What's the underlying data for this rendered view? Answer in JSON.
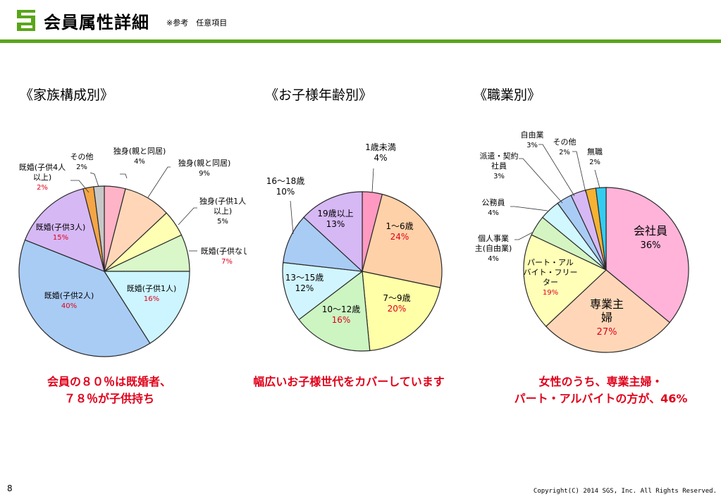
{
  "header": {
    "title": "会員属性詳細",
    "subtitle": "※参考　任意項目",
    "colors": {
      "accent": "#5aa51a"
    }
  },
  "footer": {
    "page_number": "8",
    "copyright": "Copyright(C) 2014 SGS, Inc. All Rights Reserved."
  },
  "captions": {
    "family": [
      "会員の８０％は既婚者、",
      "７８％が子供持ち"
    ],
    "children": [
      "幅広いお子様世代をカバーしています"
    ],
    "occupation": [
      "女性のうち、専業主婦・",
      "パート・アルバイトの方が、46%"
    ]
  },
  "chart_data": [
    {
      "type": "pie",
      "title": "《家族構成別》",
      "slices": [
        {
          "label": [
            "独身(親と同居)"
          ],
          "value": 4,
          "value_text": "4%",
          "color": "#ffb3c6"
        },
        {
          "label": [
            "独身(親と同居)"
          ],
          "value": 9,
          "value_text": "9%",
          "color": "#ffd7b8"
        },
        {
          "label": [
            "独身(子供1人",
            "以上)"
          ],
          "value": 5,
          "value_text": "5%",
          "color": "#ffffb3"
        },
        {
          "label": [
            "既婚(子供なし)"
          ],
          "value": 7,
          "value_text": "7%",
          "value_color": "#e0001a",
          "color": "#d9f7c8"
        },
        {
          "label": [
            "既婚(子供1人)"
          ],
          "value": 16,
          "value_text": "16%",
          "value_color": "#e0001a",
          "color": "#ccf5ff"
        },
        {
          "label": [
            "既婚(子供2人)"
          ],
          "value": 40,
          "value_text": "40%",
          "value_color": "#e0001a",
          "color": "#a9ccf5"
        },
        {
          "label": [
            "既婚(子供3人)"
          ],
          "value": 15,
          "value_text": "15%",
          "value_color": "#e0001a",
          "color": "#d6b8f5"
        },
        {
          "label": [
            "既婚(子供4人",
            "以上)"
          ],
          "value": 2,
          "value_text": "2%",
          "value_color": "#e0001a",
          "color": "#f5a545"
        },
        {
          "label": [
            "その他"
          ],
          "value": 2,
          "value_text": "2%",
          "color": "#c8c8c8"
        }
      ]
    },
    {
      "type": "pie",
      "title": "《お子様年齢別》",
      "slices": [
        {
          "label": [
            "1歳未満"
          ],
          "value": 4,
          "value_text": "4%",
          "color": "#ff99c2"
        },
        {
          "label": [
            "1～6歳"
          ],
          "value": 24,
          "value_text": "24%",
          "value_color": "#e0001a",
          "color": "#ffd1a8"
        },
        {
          "label": [
            "7～9歳"
          ],
          "value": 20,
          "value_text": "20%",
          "value_color": "#e0001a",
          "color": "#ffffa8"
        },
        {
          "label": [
            "10～12歳"
          ],
          "value": 16,
          "value_text": "16%",
          "value_color": "#e0001a",
          "color": "#ccf5c2"
        },
        {
          "label": [
            "13～15歳"
          ],
          "value": 12,
          "value_text": "12%",
          "color": "#d1f5ff"
        },
        {
          "label": [
            "16～18歳"
          ],
          "value": 10,
          "value_text": "10%",
          "color": "#a9ccf5"
        },
        {
          "label": [
            "19歳以上"
          ],
          "value": 13,
          "value_text": "13%",
          "color": "#d6b8f5"
        }
      ]
    },
    {
      "type": "pie",
      "title": "《職業別》",
      "slices": [
        {
          "label": [
            "会社員"
          ],
          "value": 36,
          "value_text": "36%",
          "color": "#ffb3d9"
        },
        {
          "label": [
            "専業主",
            "婦"
          ],
          "value": 27,
          "value_text": "27%",
          "value_color": "#e0001a",
          "color": "#ffd7b8"
        },
        {
          "label": [
            "パート・アル",
            "バイト・フリー",
            "ター"
          ],
          "value": 19,
          "value_text": "19%",
          "value_color": "#e0001a",
          "color": "#ffffb8"
        },
        {
          "label": [
            "個人事業",
            "主(自由業)"
          ],
          "value": 4,
          "value_text": "4%",
          "color": "#d4f5c2"
        },
        {
          "label": [
            "公務員"
          ],
          "value": 4,
          "value_text": "4%",
          "color": "#d1f7ff"
        },
        {
          "label": [
            "派遣・契約",
            "社員"
          ],
          "value": 3,
          "value_text": "3%",
          "color": "#a9ccf5"
        },
        {
          "label": [
            "自由業"
          ],
          "value": 3,
          "value_text": "3%",
          "color": "#d6b8f5"
        },
        {
          "label": [
            "その他"
          ],
          "value": 2,
          "value_text": "2%",
          "color": "#f5b233"
        },
        {
          "label": [
            "無職"
          ],
          "value": 2,
          "value_text": "2%",
          "color": "#33ccf0"
        }
      ]
    }
  ]
}
